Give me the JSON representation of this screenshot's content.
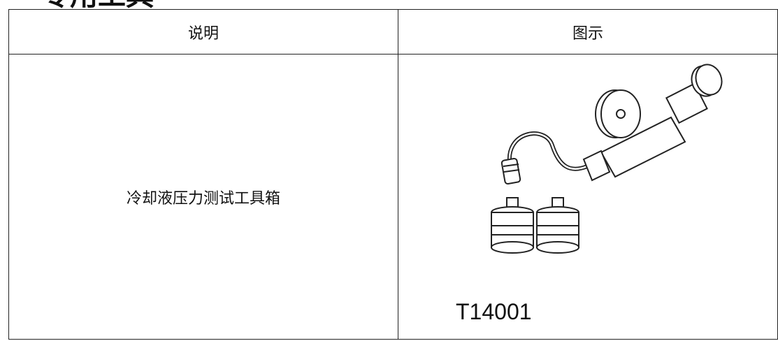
{
  "header": {
    "title": "专用工具"
  },
  "table": {
    "columns": [
      "说明",
      "图示"
    ],
    "rows": [
      [
        "冷却液压力测试工具箱",
        "T14001"
      ]
    ]
  }
}
